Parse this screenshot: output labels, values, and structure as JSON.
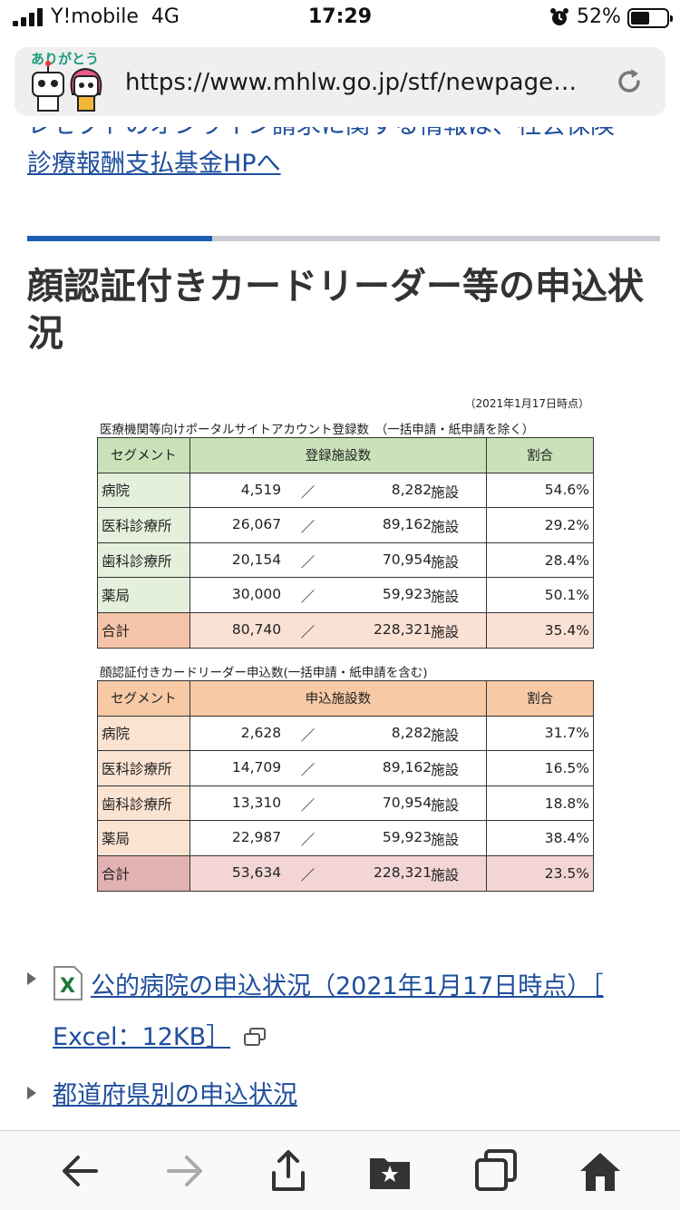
{
  "status_bar": {
    "carrier": "Y!mobile",
    "network": "4G",
    "time": "17:29",
    "battery": "52%"
  },
  "browser": {
    "url": "https://www.mhlw.go.jp/stf/newpage…",
    "mascot_text": "ありがとう"
  },
  "page": {
    "top_link_line1": "レセプトのオンライン請求に関する情報は、社会保険",
    "top_link_line2": "診療報酬支払基金HPへ",
    "heading": "顔認証付きカードリーダー等の申込状況"
  },
  "table_image": {
    "date_note": "（2021年1月17日時点）",
    "table1": {
      "caption": "医療機関等向けポータルサイトアカウント登録数　（一括申請・紙申請を除く）",
      "headers": [
        "セグメント",
        "登録施設数",
        "割合"
      ],
      "unit": "施設",
      "slash": "／",
      "rows": [
        {
          "segment": "病院",
          "count": "4,519",
          "total": "8,282",
          "pct": "54.6%"
        },
        {
          "segment": "医科診療所",
          "count": "26,067",
          "total": "89,162",
          "pct": "29.2%"
        },
        {
          "segment": "歯科診療所",
          "count": "20,154",
          "total": "70,954",
          "pct": "28.4%"
        },
        {
          "segment": "薬局",
          "count": "30,000",
          "total": "59,923",
          "pct": "50.1%"
        },
        {
          "segment": "合計",
          "count": "80,740",
          "total": "228,321",
          "pct": "35.4%"
        }
      ]
    },
    "table2": {
      "caption": "顔認証付きカードリーダー申込数(一括申請・紙申請を含む)",
      "headers": [
        "セグメント",
        "申込施設数",
        "割合"
      ],
      "unit": "施設",
      "slash": "／",
      "rows": [
        {
          "segment": "病院",
          "count": "2,628",
          "total": "8,282",
          "pct": "31.7%"
        },
        {
          "segment": "医科診療所",
          "count": "14,709",
          "total": "89,162",
          "pct": "16.5%"
        },
        {
          "segment": "歯科診療所",
          "count": "13,310",
          "total": "70,954",
          "pct": "18.8%"
        },
        {
          "segment": "薬局",
          "count": "22,987",
          "total": "59,923",
          "pct": "38.4%"
        },
        {
          "segment": "合計",
          "count": "53,634",
          "total": "228,321",
          "pct": "23.5%"
        }
      ]
    }
  },
  "links": {
    "public_hospitals_line1": "公的病院の申込状況（2021年1月17日時点）［",
    "public_hospitals_line2": "Excel：12KB］",
    "prefectures": "都道府県別の申込状況"
  },
  "toolbar": {
    "icons": [
      "back-icon",
      "forward-icon",
      "share-icon",
      "bookmarks-icon",
      "tabs-icon",
      "home-icon"
    ]
  }
}
